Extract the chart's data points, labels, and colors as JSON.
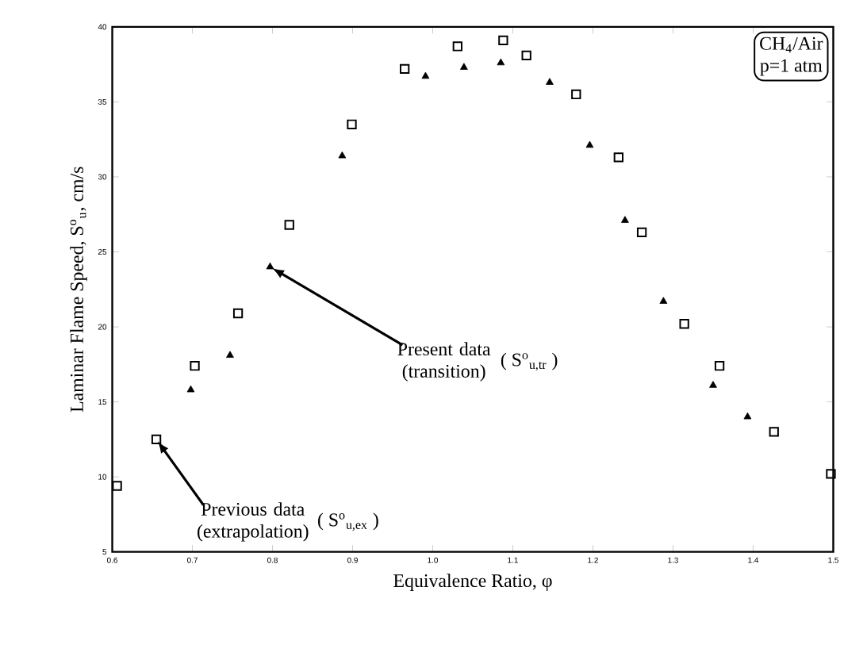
{
  "chart_data": {
    "type": "scatter",
    "xlabel": "Equivalence Ratio, φ",
    "ylabel": "Laminar Flame Speed, S$^{o}$$_{u}$, cm/s",
    "xlim": [
      0.6,
      1.5
    ],
    "xticks": [
      0.6,
      0.7,
      0.8,
      0.9,
      {
        "value": 1.0,
        "label": "1.0"
      },
      1.1,
      1.2,
      1.3,
      1.4,
      1.5
    ],
    "ylim": [
      5,
      40
    ],
    "yticks": [
      5,
      10,
      15,
      20,
      25,
      30,
      35,
      40
    ],
    "grid": false,
    "series": [
      {
        "color": "#000000",
        "marker": "square",
        "x": [
          0.606,
          0.655,
          0.703,
          0.757,
          0.821,
          0.899,
          0.965,
          1.031,
          1.088,
          1.117,
          1.179,
          1.232,
          1.261,
          1.314,
          1.358,
          1.426,
          1.497
        ],
        "values": [
          9.4,
          12.5,
          17.4,
          20.9,
          26.8,
          33.5,
          37.2,
          38.7,
          39.1,
          38.1,
          35.5,
          31.3,
          26.3,
          20.2,
          17.4,
          13.0,
          10.2
        ]
      },
      {
        "color": "#000000",
        "marker": "triangle",
        "x": [
          0.698,
          0.747,
          0.797,
          0.887,
          0.991,
          1.039,
          1.085,
          1.146,
          1.196,
          1.24,
          1.288,
          1.35,
          1.393
        ],
        "values": [
          15.8,
          18.1,
          24.0,
          31.4,
          36.7,
          37.3,
          37.6,
          36.3,
          32.1,
          27.1,
          21.7,
          16.1,
          14.0
        ]
      }
    ],
    "annotations": [
      {
        "text": "Present data (transition)",
        "x": 0.797,
        "y": 24.0
      },
      "( S$^{o}$$_{u,tr}$ )",
      {
        "text": "Previous data (extrapolation)",
        "x": 0.655,
        "y": 12.5
      },
      "( S$^{o}$$_{u,ex}$ )",
      "CH$_{4}$/Air",
      "p=1 atm"
    ]
  }
}
